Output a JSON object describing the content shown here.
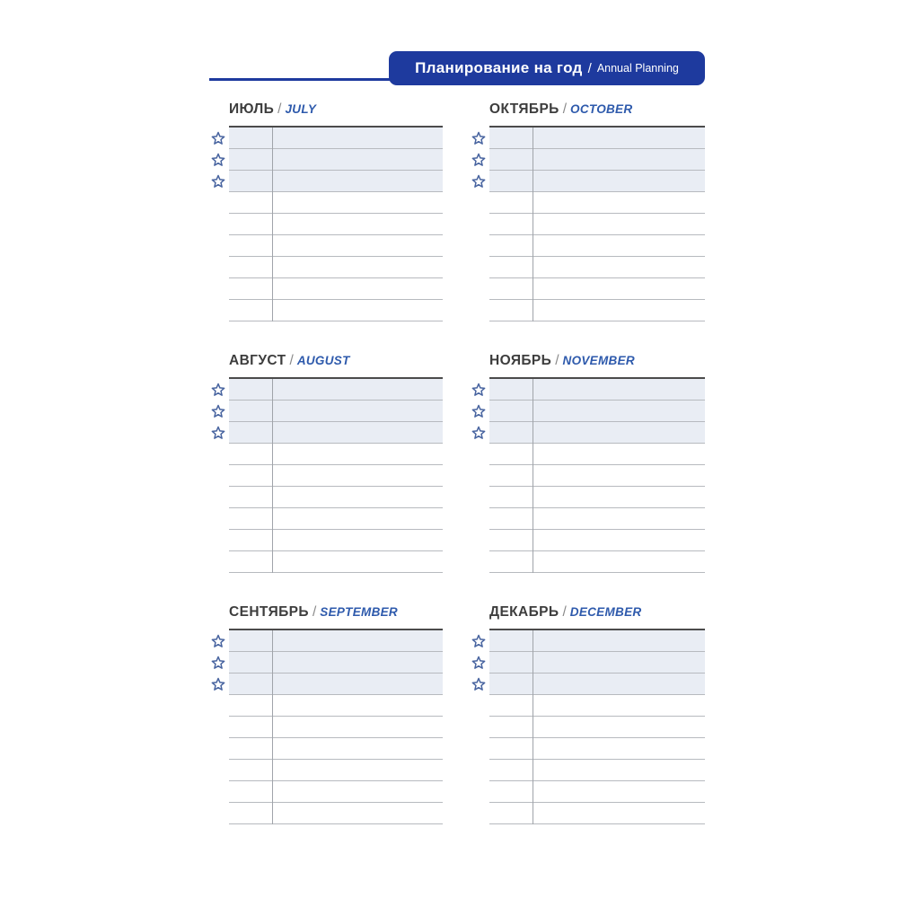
{
  "header": {
    "title_ru": "Планирование на год",
    "separator": "/",
    "title_en": "Annual Planning",
    "bar_color": "#1e3a9e",
    "text_color": "#ffffff"
  },
  "month_separator": "/",
  "months": [
    {
      "ru": "ИЮЛЬ",
      "en": "JULY"
    },
    {
      "ru": "ОКТЯБРЬ",
      "en": "OCTOBER"
    },
    {
      "ru": "АВГУСТ",
      "en": "AUGUST"
    },
    {
      "ru": "НОЯБРЬ",
      "en": "NOVEMBER"
    },
    {
      "ru": "СЕНТЯБРЬ",
      "en": "SEPTEMBER"
    },
    {
      "ru": "ДЕКАБРЬ",
      "en": "DECEMBER"
    }
  ],
  "table": {
    "total_rows": 9,
    "priority_rows": 3,
    "row_fill": "#e9edf4"
  },
  "icons": {
    "priority_marker": "star-icon"
  },
  "colors": {
    "accent_blue": "#2e5aac",
    "star_blue": "#47639f",
    "title_dark": "#3d3d3d",
    "line_light": "#b7babf",
    "line_dark": "#4b4b4b"
  }
}
